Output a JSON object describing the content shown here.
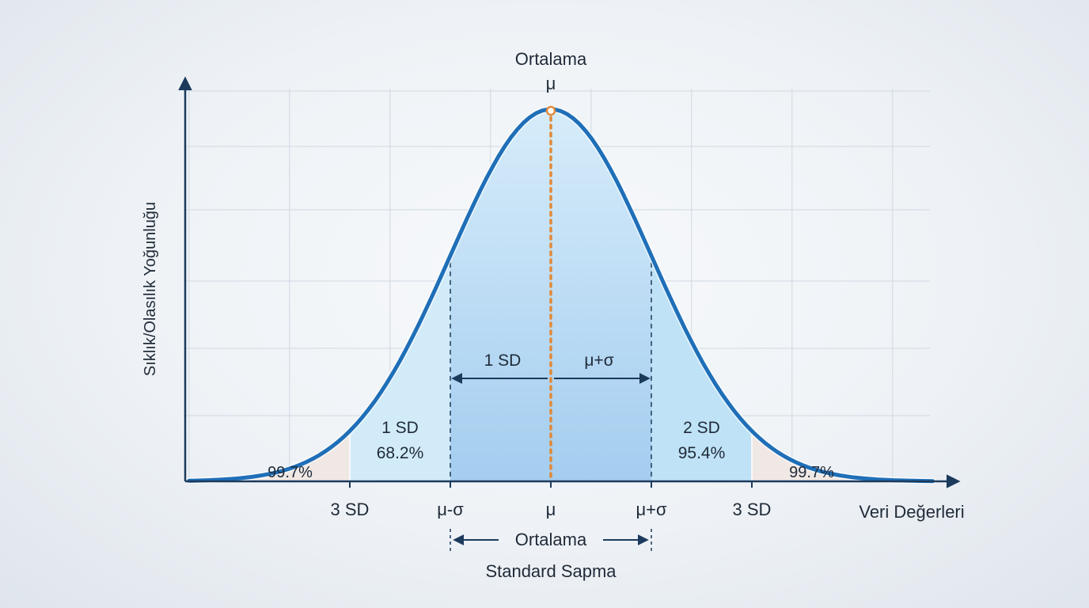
{
  "chart_data": {
    "type": "area",
    "title": "",
    "ylabel": "Sıklık/Olasılık Yoğunluğu",
    "xlabel": "Veri Değerleri",
    "x_range": [
      -3.6,
      3.8
    ],
    "distribution": "normal",
    "mean_symbol": "μ",
    "top_label": "Ortalama",
    "top_symbol": "μ",
    "x_tick_labels": [
      {
        "x": -2,
        "label": "3 SD"
      },
      {
        "x": -1,
        "label": "μ-σ"
      },
      {
        "x": 0,
        "label": "μ"
      },
      {
        "x": 1,
        "label": "μ+σ"
      },
      {
        "x": 2,
        "label": "3 SD"
      }
    ],
    "region_labels": [
      {
        "line1": "1 SD",
        "line2": "68.2%",
        "at": -1.5
      },
      {
        "line1": "2 SD",
        "line2": "95.4%",
        "at": 1.5
      }
    ],
    "tail_labels": [
      {
        "text": "99.7%",
        "at": -2.5
      },
      {
        "text": "99.7%",
        "at": 2.5
      }
    ],
    "inner_arrow": {
      "left_text": "1 SD",
      "right_text": "μ+σ"
    },
    "bottom_arrow": {
      "text": "Ortalama"
    },
    "bottom_caption": "Standard Sapma",
    "grid": true,
    "colors": {
      "curve": "#1f6fb8",
      "mean_line": "#e08a3a",
      "axis": "#1b3a5c",
      "band_inner": "#a9d1f1",
      "band_middle": "#d2ebf8",
      "tail": "#efe7e2"
    }
  }
}
